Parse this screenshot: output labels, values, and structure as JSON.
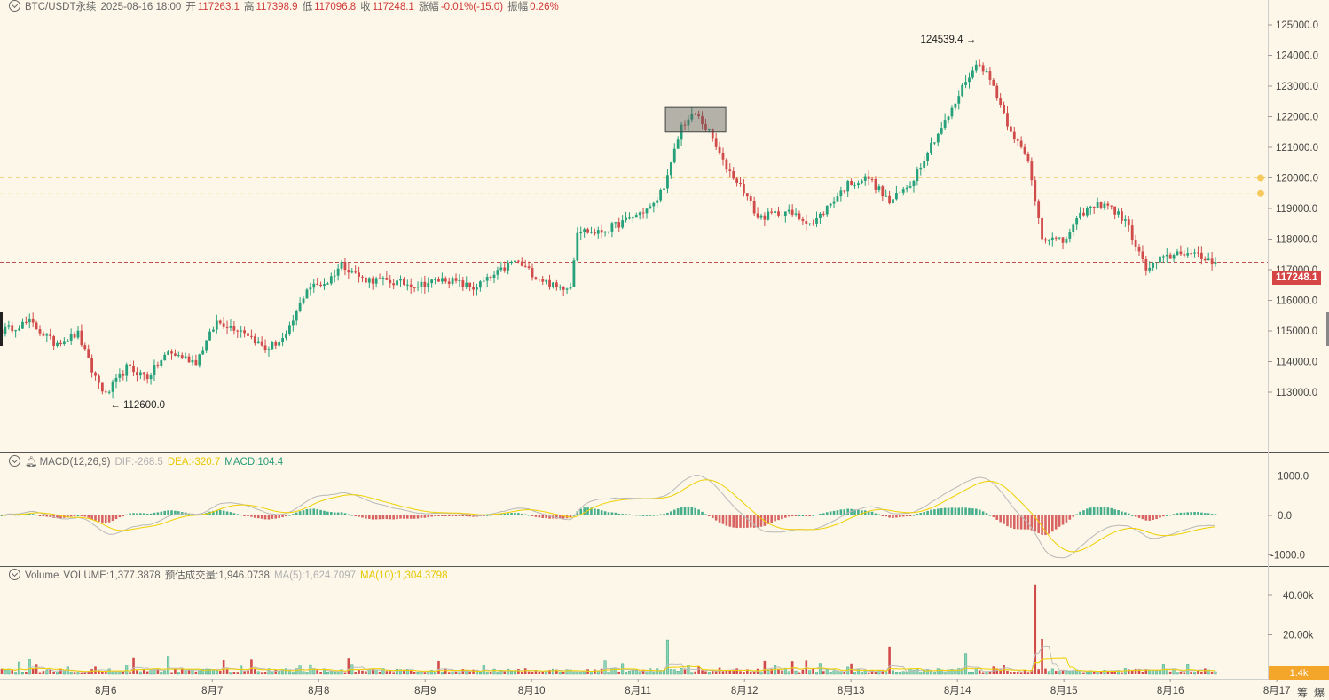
{
  "header": {
    "symbol": "BTC/USDT永续",
    "datetime": "2025-08-16 18:00",
    "open_label": "开",
    "open": "117263.1",
    "high_label": "高",
    "high": "117398.9",
    "low_label": "低",
    "low": "117096.8",
    "close_label": "收",
    "close": "117248.1",
    "change_label": "涨幅",
    "change": "-0.01%(-15.0)",
    "amp_label": "振幅",
    "amp": "0.26%"
  },
  "macd_header": {
    "name": "MACD(12,26,9)",
    "dif": "DIF:-268.5",
    "dea": "DEA:-320.7",
    "macd": "MACD:104.4"
  },
  "volume_header": {
    "name": "Volume",
    "volume": "VOLUME:1,377.3878",
    "est": "预估成交量:1,946.0738",
    "ma5": "MA(5):1,624.7097",
    "ma10": "MA(10):1,304.3798"
  },
  "annotations": {
    "low_marker": "112600.0",
    "high_marker": "124539.4",
    "last_price": "117248.1",
    "last_volume": "1.4k"
  },
  "footer": {
    "right_icons": [
      "筹",
      "爆"
    ]
  },
  "colors": {
    "up": "#26a17b",
    "down": "#d14b4b",
    "dea": "#f0d000",
    "dif": "#b8b8b8",
    "background": "#fcf7e8"
  },
  "chart_data": [
    {
      "type": "candlestick",
      "title": "BTC/USDT永续",
      "x_ticks": [
        "8月6",
        "8月7",
        "8月8",
        "8月9",
        "8月10",
        "8月11",
        "8月12",
        "8月13",
        "8月14",
        "8月15",
        "8月16",
        "8月17"
      ],
      "y_ticks": [
        "113000.0",
        "114000.0",
        "115000.0",
        "116000.0",
        "117000.0",
        "118000.0",
        "119000.0",
        "120000.0",
        "121000.0",
        "122000.0",
        "123000.0",
        "124000.0",
        "125000.0"
      ],
      "ylim": [
        112000,
        125600
      ],
      "close_anchors": [
        [
          0,
          115000
        ],
        [
          8,
          115300
        ],
        [
          15,
          114600
        ],
        [
          22,
          114900
        ],
        [
          26,
          113700
        ],
        [
          30,
          112900
        ],
        [
          36,
          113800
        ],
        [
          42,
          113500
        ],
        [
          48,
          114300
        ],
        [
          56,
          114000
        ],
        [
          62,
          115300
        ],
        [
          70,
          115000
        ],
        [
          76,
          114400
        ],
        [
          82,
          114800
        ],
        [
          88,
          116400
        ],
        [
          94,
          116600
        ],
        [
          98,
          117200
        ],
        [
          104,
          116700
        ],
        [
          112,
          116600
        ],
        [
          120,
          116500
        ],
        [
          128,
          116700
        ],
        [
          136,
          116400
        ],
        [
          142,
          116800
        ],
        [
          148,
          117300
        ],
        [
          154,
          116800
        ],
        [
          160,
          116400
        ],
        [
          164,
          116500
        ],
        [
          166,
          118300
        ],
        [
          172,
          118200
        ],
        [
          180,
          118600
        ],
        [
          188,
          119100
        ],
        [
          192,
          120000
        ],
        [
          196,
          121700
        ],
        [
          200,
          122100
        ],
        [
          204,
          121500
        ],
        [
          208,
          120500
        ],
        [
          214,
          119600
        ],
        [
          218,
          118700
        ],
        [
          226,
          118900
        ],
        [
          234,
          118500
        ],
        [
          240,
          119300
        ],
        [
          244,
          119800
        ],
        [
          250,
          120000
        ],
        [
          256,
          119200
        ],
        [
          262,
          119800
        ],
        [
          268,
          121100
        ],
        [
          274,
          122200
        ],
        [
          278,
          123200
        ],
        [
          282,
          123800
        ],
        [
          286,
          123000
        ],
        [
          290,
          121800
        ],
        [
          296,
          120500
        ],
        [
          300,
          118100
        ],
        [
          306,
          117900
        ],
        [
          312,
          118900
        ],
        [
          318,
          119200
        ],
        [
          324,
          118600
        ],
        [
          330,
          117000
        ],
        [
          334,
          117300
        ],
        [
          340,
          117600
        ],
        [
          346,
          117400
        ],
        [
          350,
          117250
        ]
      ],
      "candle_count": 351,
      "series_last": {
        "open": 117263.1,
        "high": 117398.9,
        "low": 117096.8,
        "close": 117248.1
      },
      "marked_low": 112600.0,
      "marked_high": 124539.4,
      "reference_lines": [
        120000,
        119500,
        117248.1
      ]
    },
    {
      "type": "macd",
      "title": "MACD(12,26,9)",
      "y_ticks": [
        "1000.0",
        "0.0",
        "-1000.0"
      ],
      "ylim": [
        -1250,
        1250
      ],
      "dif": -268.5,
      "dea": -320.7,
      "macd": 104.4
    },
    {
      "type": "bar",
      "title": "Volume",
      "y_ticks": [
        "40.00k",
        "20.00k"
      ],
      "ylim": [
        0,
        50000
      ],
      "last_volume": 1377.3878,
      "ma5": 1624.7097,
      "ma10": 1304.3798,
      "spikes": [
        [
          38,
          8200
        ],
        [
          48,
          9200
        ],
        [
          64,
          7200
        ],
        [
          100,
          8000
        ],
        [
          192,
          17500
        ],
        [
          232,
          7000
        ],
        [
          256,
          14000
        ],
        [
          278,
          10500
        ],
        [
          298,
          45500
        ],
        [
          300,
          18000
        ]
      ]
    }
  ]
}
